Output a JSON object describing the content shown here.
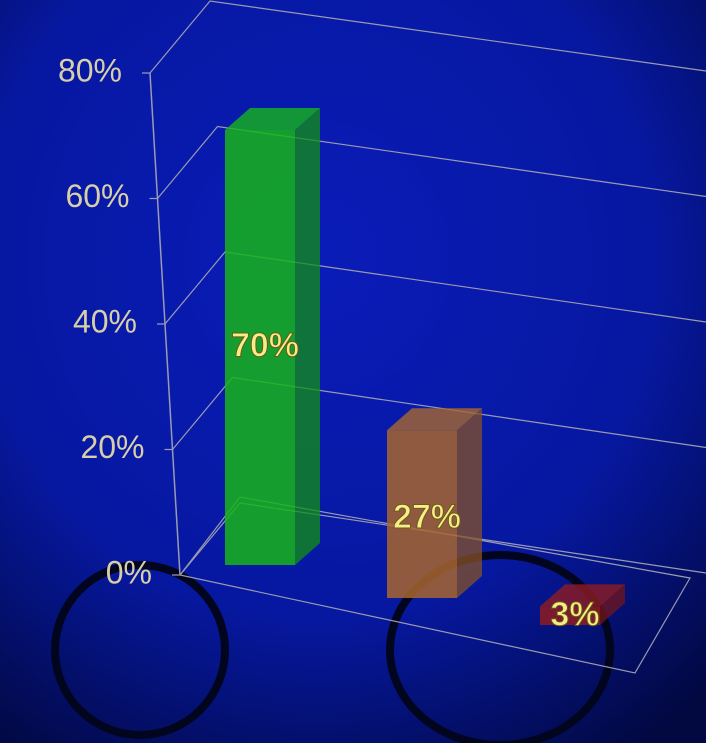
{
  "chart_data": {
    "type": "bar3d",
    "values": [
      70,
      27,
      3
    ],
    "value_labels": [
      "70%",
      "27%",
      "3%"
    ],
    "colors": [
      "#17b519",
      "#a8662e",
      "#8e1c22"
    ],
    "ylim": [
      0,
      80
    ],
    "yticks": [
      {
        "value": 0,
        "label": "0%"
      },
      {
        "value": 20,
        "label": "20%"
      },
      {
        "value": 40,
        "label": "40%"
      },
      {
        "value": 60,
        "label": "60%"
      },
      {
        "value": 80,
        "label": "80%"
      }
    ],
    "grid": true
  }
}
